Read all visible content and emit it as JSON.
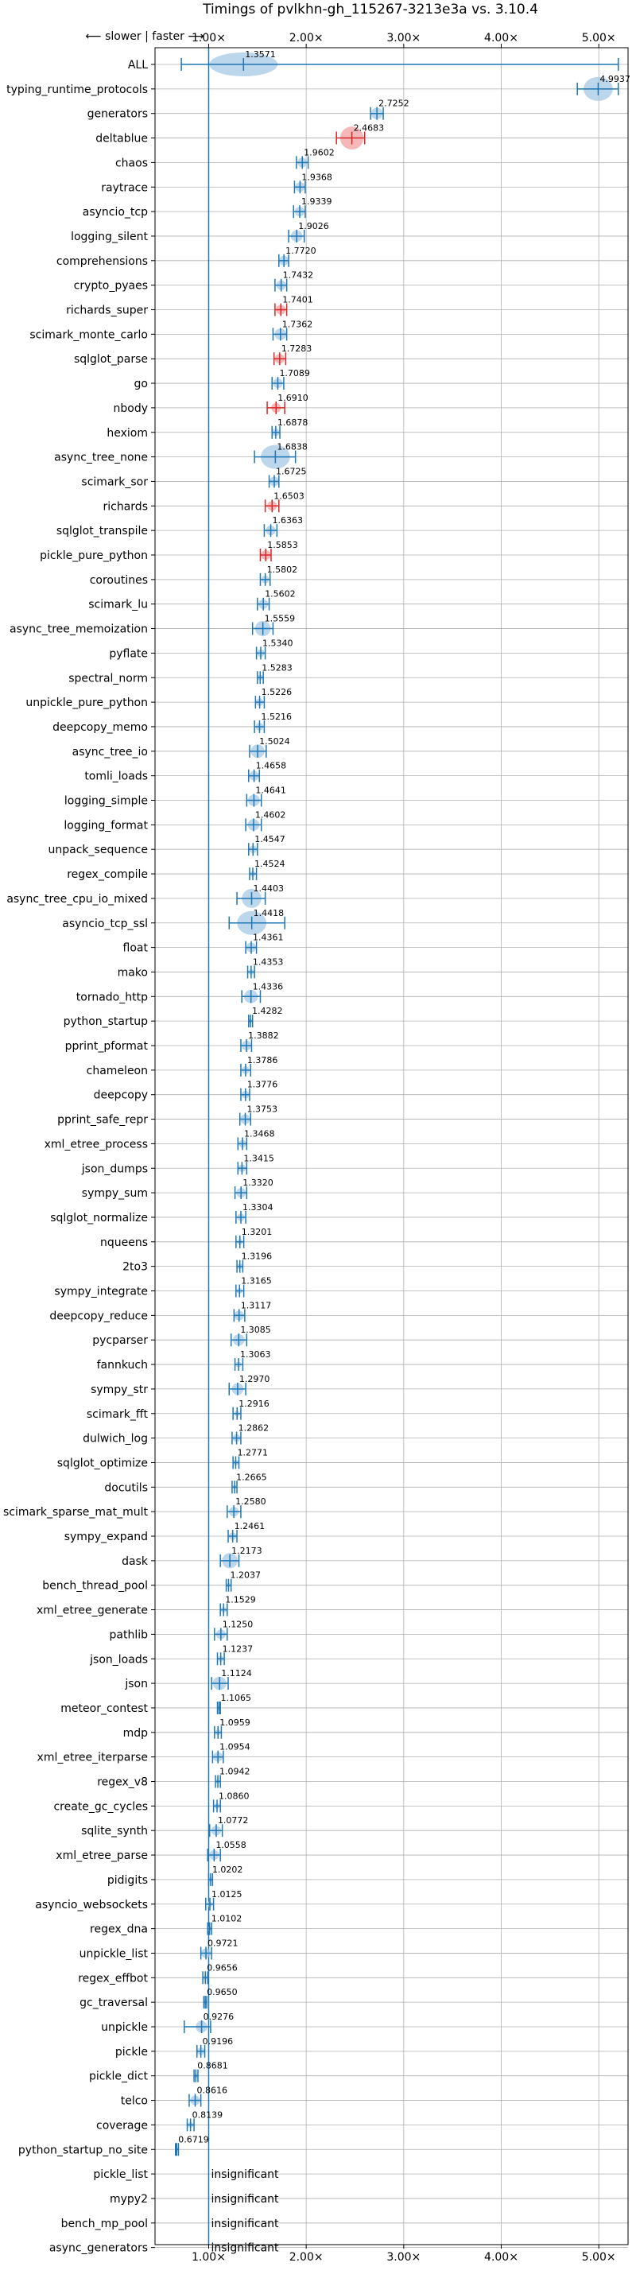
{
  "chart_data": {
    "type": "violin",
    "title": "Timings of pvlkhn-gh_115267-3213e3a vs. 3.10.4",
    "direction_label": "⟵ slower | faster ⟶",
    "xlim": [
      0.45,
      5.3
    ],
    "x_ticks": [
      1.0,
      2.0,
      3.0,
      4.0,
      5.0
    ],
    "x_tick_labels": [
      "1.00×",
      "2.00×",
      "3.00×",
      "4.00×",
      "5.00×"
    ],
    "reference_line": 1.0,
    "grid": true,
    "colors": {
      "normal": "#1f77b4",
      "fill": "#a6c8e6",
      "highlight": "#f0a0a0",
      "highlight_line": "#d62728"
    },
    "insignificant_text": "insignificant",
    "benchmarks": [
      {
        "name": "ALL",
        "value": 1.3571,
        "label": "1.3571",
        "lo": 0.72,
        "hi": 5.2,
        "spread": 0.35
      },
      {
        "name": "typing_runtime_protocols",
        "value": 4.9937,
        "label": "4.9937",
        "lo": 4.78,
        "hi": 5.2,
        "spread": 0.15
      },
      {
        "name": "generators",
        "value": 2.7252,
        "label": "2.7252",
        "lo": 2.66,
        "hi": 2.79,
        "spread": 0.06
      },
      {
        "name": "deltablue",
        "value": 2.4683,
        "label": "2.4683",
        "lo": 2.31,
        "hi": 2.6,
        "spread": 0.12,
        "highlight": true
      },
      {
        "name": "chaos",
        "value": 1.9602,
        "label": "1.9602",
        "lo": 1.9,
        "hi": 2.02,
        "spread": 0.05
      },
      {
        "name": "raytrace",
        "value": 1.9368,
        "label": "1.9368",
        "lo": 1.88,
        "hi": 1.99,
        "spread": 0.05
      },
      {
        "name": "asyncio_tcp",
        "value": 1.9339,
        "label": "1.9339",
        "lo": 1.87,
        "hi": 1.99,
        "spread": 0.05
      },
      {
        "name": "logging_silent",
        "value": 1.9026,
        "label": "1.9026",
        "lo": 1.82,
        "hi": 1.98,
        "spread": 0.06
      },
      {
        "name": "comprehensions",
        "value": 1.772,
        "label": "1.7720",
        "lo": 1.72,
        "hi": 1.82,
        "spread": 0.05
      },
      {
        "name": "crypto_pyaes",
        "value": 1.7432,
        "label": "1.7432",
        "lo": 1.68,
        "hi": 1.8,
        "spread": 0.05
      },
      {
        "name": "richards_super",
        "value": 1.7401,
        "label": "1.7401",
        "lo": 1.68,
        "hi": 1.8,
        "spread": 0.05,
        "highlight": true
      },
      {
        "name": "scimark_monte_carlo",
        "value": 1.7362,
        "label": "1.7362",
        "lo": 1.66,
        "hi": 1.8,
        "spread": 0.06
      },
      {
        "name": "sqlglot_parse",
        "value": 1.7283,
        "label": "1.7283",
        "lo": 1.67,
        "hi": 1.79,
        "spread": 0.05,
        "highlight": true
      },
      {
        "name": "go",
        "value": 1.7089,
        "label": "1.7089",
        "lo": 1.65,
        "hi": 1.77,
        "spread": 0.05
      },
      {
        "name": "nbody",
        "value": 1.691,
        "label": "1.6910",
        "lo": 1.6,
        "hi": 1.78,
        "spread": 0.05,
        "highlight": true
      },
      {
        "name": "hexiom",
        "value": 1.6878,
        "label": "1.6878",
        "lo": 1.65,
        "hi": 1.73,
        "spread": 0.04
      },
      {
        "name": "async_tree_none",
        "value": 1.6838,
        "label": "1.6838",
        "lo": 1.47,
        "hi": 1.89,
        "spread": 0.15
      },
      {
        "name": "scimark_sor",
        "value": 1.6725,
        "label": "1.6725",
        "lo": 1.62,
        "hi": 1.72,
        "spread": 0.05
      },
      {
        "name": "richards",
        "value": 1.6503,
        "label": "1.6503",
        "lo": 1.58,
        "hi": 1.72,
        "spread": 0.05,
        "highlight": true
      },
      {
        "name": "sqlglot_transpile",
        "value": 1.6363,
        "label": "1.6363",
        "lo": 1.57,
        "hi": 1.7,
        "spread": 0.05
      },
      {
        "name": "pickle_pure_python",
        "value": 1.5853,
        "label": "1.5853",
        "lo": 1.53,
        "hi": 1.64,
        "spread": 0.05,
        "highlight": true
      },
      {
        "name": "coroutines",
        "value": 1.5802,
        "label": "1.5802",
        "lo": 1.53,
        "hi": 1.63,
        "spread": 0.04
      },
      {
        "name": "scimark_lu",
        "value": 1.5602,
        "label": "1.5602",
        "lo": 1.5,
        "hi": 1.62,
        "spread": 0.05
      },
      {
        "name": "async_tree_memoization",
        "value": 1.5559,
        "label": "1.5559",
        "lo": 1.45,
        "hi": 1.66,
        "spread": 0.08
      },
      {
        "name": "pyflate",
        "value": 1.534,
        "label": "1.5340",
        "lo": 1.49,
        "hi": 1.58,
        "spread": 0.04
      },
      {
        "name": "spectral_norm",
        "value": 1.5283,
        "label": "1.5283",
        "lo": 1.5,
        "hi": 1.56,
        "spread": 0.03
      },
      {
        "name": "unpickle_pure_python",
        "value": 1.5226,
        "label": "1.5226",
        "lo": 1.48,
        "hi": 1.57,
        "spread": 0.04
      },
      {
        "name": "deepcopy_memo",
        "value": 1.5216,
        "label": "1.5216",
        "lo": 1.47,
        "hi": 1.57,
        "spread": 0.04
      },
      {
        "name": "async_tree_io",
        "value": 1.5024,
        "label": "1.5024",
        "lo": 1.42,
        "hi": 1.59,
        "spread": 0.07
      },
      {
        "name": "tomli_loads",
        "value": 1.4658,
        "label": "1.4658",
        "lo": 1.41,
        "hi": 1.52,
        "spread": 0.05
      },
      {
        "name": "logging_simple",
        "value": 1.4641,
        "label": "1.4641",
        "lo": 1.39,
        "hi": 1.54,
        "spread": 0.06
      },
      {
        "name": "logging_format",
        "value": 1.4602,
        "label": "1.4602",
        "lo": 1.38,
        "hi": 1.54,
        "spread": 0.06
      },
      {
        "name": "unpack_sequence",
        "value": 1.4547,
        "label": "1.4547",
        "lo": 1.41,
        "hi": 1.5,
        "spread": 0.04
      },
      {
        "name": "regex_compile",
        "value": 1.4524,
        "label": "1.4524",
        "lo": 1.42,
        "hi": 1.49,
        "spread": 0.03
      },
      {
        "name": "async_tree_cpu_io_mixed",
        "value": 1.4403,
        "label": "1.4403",
        "lo": 1.29,
        "hi": 1.58,
        "spread": 0.1
      },
      {
        "name": "asyncio_tcp_ssl",
        "value": 1.4418,
        "label": "1.4418",
        "lo": 1.21,
        "hi": 1.78,
        "spread": 0.15
      },
      {
        "name": "float",
        "value": 1.4361,
        "label": "1.4361",
        "lo": 1.38,
        "hi": 1.49,
        "spread": 0.05
      },
      {
        "name": "mako",
        "value": 1.4353,
        "label": "1.4353",
        "lo": 1.4,
        "hi": 1.47,
        "spread": 0.03
      },
      {
        "name": "tornado_http",
        "value": 1.4336,
        "label": "1.4336",
        "lo": 1.34,
        "hi": 1.53,
        "spread": 0.07
      },
      {
        "name": "python_startup",
        "value": 1.4282,
        "label": "1.4282",
        "lo": 1.41,
        "hi": 1.45,
        "spread": 0.02
      },
      {
        "name": "pprint_pformat",
        "value": 1.3882,
        "label": "1.3882",
        "lo": 1.33,
        "hi": 1.44,
        "spread": 0.05
      },
      {
        "name": "chameleon",
        "value": 1.3786,
        "label": "1.3786",
        "lo": 1.33,
        "hi": 1.43,
        "spread": 0.04
      },
      {
        "name": "deepcopy",
        "value": 1.3776,
        "label": "1.3776",
        "lo": 1.33,
        "hi": 1.42,
        "spread": 0.04
      },
      {
        "name": "pprint_safe_repr",
        "value": 1.3753,
        "label": "1.3753",
        "lo": 1.32,
        "hi": 1.43,
        "spread": 0.05
      },
      {
        "name": "xml_etree_process",
        "value": 1.3468,
        "label": "1.3468",
        "lo": 1.3,
        "hi": 1.39,
        "spread": 0.04
      },
      {
        "name": "json_dumps",
        "value": 1.3415,
        "label": "1.3415",
        "lo": 1.3,
        "hi": 1.39,
        "spread": 0.04
      },
      {
        "name": "sympy_sum",
        "value": 1.332,
        "label": "1.3320",
        "lo": 1.27,
        "hi": 1.39,
        "spread": 0.05
      },
      {
        "name": "sqlglot_normalize",
        "value": 1.3304,
        "label": "1.3304",
        "lo": 1.28,
        "hi": 1.38,
        "spread": 0.04
      },
      {
        "name": "nqueens",
        "value": 1.3201,
        "label": "1.3201",
        "lo": 1.28,
        "hi": 1.36,
        "spread": 0.03
      },
      {
        "name": "2to3",
        "value": 1.3196,
        "label": "1.3196",
        "lo": 1.29,
        "hi": 1.35,
        "spread": 0.03
      },
      {
        "name": "sympy_integrate",
        "value": 1.3165,
        "label": "1.3165",
        "lo": 1.28,
        "hi": 1.36,
        "spread": 0.03
      },
      {
        "name": "deepcopy_reduce",
        "value": 1.3117,
        "label": "1.3117",
        "lo": 1.26,
        "hi": 1.37,
        "spread": 0.05
      },
      {
        "name": "pycparser",
        "value": 1.3085,
        "label": "1.3085",
        "lo": 1.23,
        "hi": 1.39,
        "spread": 0.06
      },
      {
        "name": "fannkuch",
        "value": 1.3063,
        "label": "1.3063",
        "lo": 1.27,
        "hi": 1.35,
        "spread": 0.03
      },
      {
        "name": "sympy_str",
        "value": 1.297,
        "label": "1.2970",
        "lo": 1.21,
        "hi": 1.38,
        "spread": 0.06
      },
      {
        "name": "scimark_fft",
        "value": 1.2916,
        "label": "1.2916",
        "lo": 1.25,
        "hi": 1.33,
        "spread": 0.03
      },
      {
        "name": "dulwich_log",
        "value": 1.2862,
        "label": "1.2862",
        "lo": 1.24,
        "hi": 1.33,
        "spread": 0.04
      },
      {
        "name": "sqlglot_optimize",
        "value": 1.2771,
        "label": "1.2771",
        "lo": 1.25,
        "hi": 1.31,
        "spread": 0.03
      },
      {
        "name": "docutils",
        "value": 1.2665,
        "label": "1.2665",
        "lo": 1.24,
        "hi": 1.29,
        "spread": 0.02
      },
      {
        "name": "scimark_sparse_mat_mult",
        "value": 1.258,
        "label": "1.2580",
        "lo": 1.19,
        "hi": 1.33,
        "spread": 0.05
      },
      {
        "name": "sympy_expand",
        "value": 1.2461,
        "label": "1.2461",
        "lo": 1.2,
        "hi": 1.29,
        "spread": 0.04
      },
      {
        "name": "dask",
        "value": 1.2173,
        "label": "1.2173",
        "lo": 1.12,
        "hi": 1.31,
        "spread": 0.08
      },
      {
        "name": "bench_thread_pool",
        "value": 1.2037,
        "label": "1.2037",
        "lo": 1.18,
        "hi": 1.23,
        "spread": 0.02
      },
      {
        "name": "xml_etree_generate",
        "value": 1.1529,
        "label": "1.1529",
        "lo": 1.12,
        "hi": 1.19,
        "spread": 0.03
      },
      {
        "name": "pathlib",
        "value": 1.125,
        "label": "1.1250",
        "lo": 1.06,
        "hi": 1.19,
        "spread": 0.05
      },
      {
        "name": "json_loads",
        "value": 1.1237,
        "label": "1.1237",
        "lo": 1.09,
        "hi": 1.16,
        "spread": 0.03
      },
      {
        "name": "json",
        "value": 1.1124,
        "label": "1.1124",
        "lo": 1.03,
        "hi": 1.2,
        "spread": 0.07
      },
      {
        "name": "meteor_contest",
        "value": 1.1065,
        "label": "1.1065",
        "lo": 1.09,
        "hi": 1.12,
        "spread": 0.02
      },
      {
        "name": "mdp",
        "value": 1.0959,
        "label": "1.0959",
        "lo": 1.06,
        "hi": 1.13,
        "spread": 0.03
      },
      {
        "name": "xml_etree_iterparse",
        "value": 1.0954,
        "label": "1.0954",
        "lo": 1.04,
        "hi": 1.15,
        "spread": 0.05
      },
      {
        "name": "regex_v8",
        "value": 1.0942,
        "label": "1.0942",
        "lo": 1.07,
        "hi": 1.12,
        "spread": 0.02
      },
      {
        "name": "create_gc_cycles",
        "value": 1.086,
        "label": "1.0860",
        "lo": 1.05,
        "hi": 1.12,
        "spread": 0.03
      },
      {
        "name": "sqlite_synth",
        "value": 1.0772,
        "label": "1.0772",
        "lo": 1.01,
        "hi": 1.14,
        "spread": 0.05
      },
      {
        "name": "xml_etree_parse",
        "value": 1.0558,
        "label": "1.0558",
        "lo": 0.99,
        "hi": 1.12,
        "spread": 0.05
      },
      {
        "name": "pidigits",
        "value": 1.0202,
        "label": "1.0202",
        "lo": 1.0,
        "hi": 1.04,
        "spread": 0.02
      },
      {
        "name": "asyncio_websockets",
        "value": 1.0125,
        "label": "1.0125",
        "lo": 0.97,
        "hi": 1.05,
        "spread": 0.03
      },
      {
        "name": "regex_dna",
        "value": 1.0102,
        "label": "1.0102",
        "lo": 0.99,
        "hi": 1.03,
        "spread": 0.02
      },
      {
        "name": "unpickle_list",
        "value": 0.9721,
        "label": "0.9721",
        "lo": 0.92,
        "hi": 1.03,
        "spread": 0.05
      },
      {
        "name": "regex_effbot",
        "value": 0.9656,
        "label": "0.9656",
        "lo": 0.94,
        "hi": 0.99,
        "spread": 0.02
      },
      {
        "name": "gc_traversal",
        "value": 0.965,
        "label": "0.9650",
        "lo": 0.95,
        "hi": 0.98,
        "spread": 0.02
      },
      {
        "name": "unpickle",
        "value": 0.9276,
        "label": "0.9276",
        "lo": 0.75,
        "hi": 1.02,
        "spread": 0.06
      },
      {
        "name": "pickle",
        "value": 0.9196,
        "label": "0.9196",
        "lo": 0.88,
        "hi": 0.96,
        "spread": 0.04
      },
      {
        "name": "pickle_dict",
        "value": 0.8681,
        "label": "0.8681",
        "lo": 0.85,
        "hi": 0.89,
        "spread": 0.02
      },
      {
        "name": "telco",
        "value": 0.8616,
        "label": "0.8616",
        "lo": 0.8,
        "hi": 0.92,
        "spread": 0.05
      },
      {
        "name": "coverage",
        "value": 0.8139,
        "label": "0.8139",
        "lo": 0.78,
        "hi": 0.85,
        "spread": 0.03
      },
      {
        "name": "python_startup_no_site",
        "value": 0.6719,
        "label": "0.6719",
        "lo": 0.66,
        "hi": 0.69,
        "spread": 0.01
      },
      {
        "name": "pickle_list",
        "insignificant": true
      },
      {
        "name": "mypy2",
        "insignificant": true
      },
      {
        "name": "bench_mp_pool",
        "insignificant": true
      },
      {
        "name": "async_generators",
        "insignificant": true
      }
    ]
  }
}
